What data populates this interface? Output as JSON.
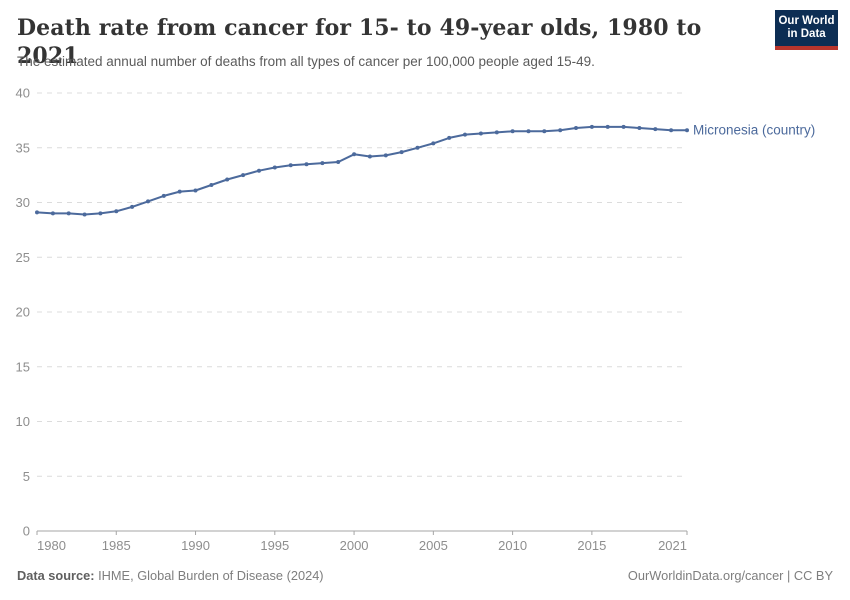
{
  "header": {
    "title": "Death rate from cancer for 15- to 49-year olds, 1980 to 2021",
    "subtitle": "The estimated annual number of deaths from all types of cancer per 100,000 people aged 15-49."
  },
  "logo": {
    "line1": "Our World",
    "line2": "in Data",
    "bg_color": "#0d2e54",
    "bar_color": "#b8352c",
    "text_color": "#ffffff"
  },
  "chart_data": {
    "type": "line",
    "title": "Death rate from cancer for 15- to 49-year olds, 1980 to 2021",
    "xlabel": "",
    "ylabel": "",
    "x": [
      1980,
      1981,
      1982,
      1983,
      1984,
      1985,
      1986,
      1987,
      1988,
      1989,
      1990,
      1991,
      1992,
      1993,
      1994,
      1995,
      1996,
      1997,
      1998,
      1999,
      2000,
      2001,
      2002,
      2003,
      2004,
      2005,
      2006,
      2007,
      2008,
      2009,
      2010,
      2011,
      2012,
      2013,
      2014,
      2015,
      2016,
      2017,
      2018,
      2019,
      2020,
      2021
    ],
    "series": [
      {
        "name": "Micronesia (country)",
        "color": "#4C6A9C",
        "values": [
          29.1,
          29.0,
          29.0,
          28.9,
          29.0,
          29.2,
          29.6,
          30.1,
          30.6,
          31.0,
          31.1,
          31.6,
          32.1,
          32.5,
          32.9,
          33.2,
          33.4,
          33.5,
          33.6,
          33.7,
          34.4,
          34.2,
          34.3,
          34.6,
          35.0,
          35.4,
          35.9,
          36.2,
          36.3,
          36.4,
          36.5,
          36.5,
          36.5,
          36.6,
          36.8,
          36.9,
          36.9,
          36.9,
          36.8,
          36.7,
          36.6,
          36.6
        ]
      }
    ],
    "xlim": [
      1980,
      2021
    ],
    "ylim": [
      0,
      40
    ],
    "xticks": [
      1980,
      1985,
      1990,
      1995,
      2000,
      2005,
      2010,
      2015,
      2021
    ],
    "yticks": [
      0,
      5,
      10,
      15,
      20,
      25,
      30,
      35,
      40
    ],
    "grid": "horizontal-dashed",
    "legend_position": "right-of-line-end",
    "markers": true
  },
  "footer": {
    "source_label": "Data source:",
    "source_value": "IHME, Global Burden of Disease (2024)",
    "rights": "OurWorldinData.org/cancer | CC BY"
  },
  "colors": {
    "line": "#4C6A9C",
    "grid": "#dcdcdc",
    "axis": "#a5a5a5",
    "tick_label": "#8e8e8e",
    "title": "#343434",
    "subtitle": "#5b5b5b",
    "footer": "#7e7e7e"
  }
}
